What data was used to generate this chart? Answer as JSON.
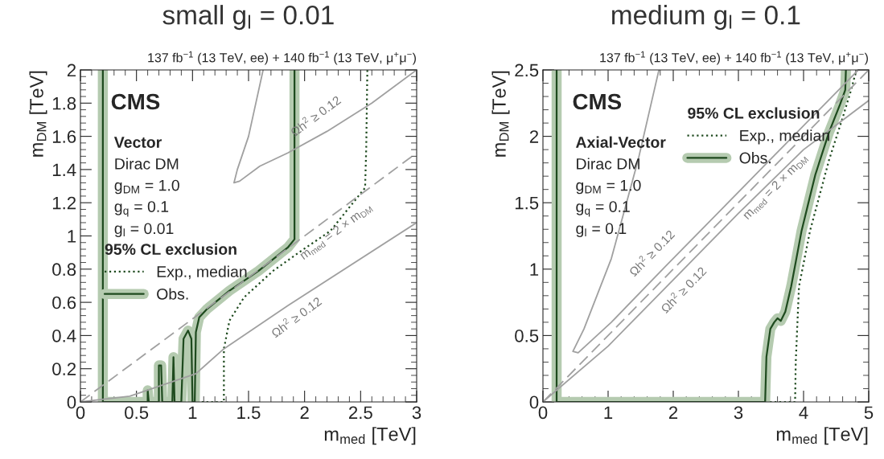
{
  "chart_data": [
    {
      "type": "line",
      "title": "small g$_{l}$ = 0.01",
      "subtitle": "137 fb$^{−1}$ (13 TeV, ee) + 140 fb$^{−1}$ (13 TeV, μ$^{+}$μ$^{−}$)",
      "xlabel": "m$_{med}$ [TeV]",
      "ylabel": "m$_{DM}$ [TeV]",
      "xlim": [
        0,
        3
      ],
      "ylim": [
        0,
        2
      ],
      "xticks": [
        0,
        0.5,
        1,
        1.5,
        2,
        2.5,
        3
      ],
      "yticks": [
        0,
        0.2,
        0.4,
        0.6,
        0.8,
        1,
        1.2,
        1.4,
        1.6,
        1.8,
        2
      ],
      "legend": "left",
      "legend_title": "95% CL exclusion",
      "annotations": [
        "CMS",
        "Vector",
        "Dirac DM",
        "g$_{DM}$ = 1.0",
        "g$_{q}$ = 0.1",
        "g$_{l}$ = 0.01",
        {
          "text": "Ωh$^{2}$ ≥ 0.12",
          "x": 2.2,
          "y": 1.63
        },
        {
          "text": "Ωh$^{2}$ ≥ 0.12",
          "x": 1.85,
          "y": 0.58
        },
        {
          "text": "m$_{med}$ = 2 × m$_{DM}$",
          "x": 2.2,
          "y": 1.1
        }
      ],
      "series": [
        {
          "name": "Exp., median",
          "color": "#1e4a1e",
          "line_style": "dotted",
          "x": [
            1.04,
            1.28,
            1.28,
            1.33,
            1.46,
            1.72,
            1.97,
            2.23,
            2.54,
            2.55,
            2.56
          ],
          "values": [
            0,
            0,
            0.32,
            0.49,
            0.63,
            0.79,
            0.91,
            1.03,
            1.29,
            1.53,
            2
          ]
        },
        {
          "name": "Obs.",
          "color": "#1e4a1e",
          "line_style": "solid",
          "x": [
            0.2,
            0.2,
            0.6,
            0.6,
            0.61,
            0.7,
            0.7,
            0.72,
            0.73,
            0.82,
            0.83,
            0.84,
            0.9,
            0.92,
            0.96,
            0.99,
            1.0,
            1.02,
            1.03,
            1.06,
            1.13,
            1.33,
            1.59,
            1.85,
            1.91,
            1.91
          ],
          "values": [
            2,
            0,
            0,
            0.07,
            0,
            0,
            0.22,
            0.22,
            0,
            0,
            0.27,
            0,
            0,
            0.38,
            0.43,
            0.38,
            0,
            0,
            0.42,
            0.51,
            0.56,
            0.67,
            0.79,
            0.93,
            0.98,
            2
          ]
        },
        {
          "color": "#a0a0a0",
          "line_style": "dashed",
          "x": [
            0,
            3
          ],
          "values": [
            0,
            1.5
          ]
        },
        {
          "color": "#a0a0a0",
          "line_style": "solid",
          "x": [
            0,
            0.44,
            1.03,
            1.28,
            1.85,
            3
          ],
          "values": [
            0,
            0.035,
            0.17,
            0.32,
            0.58,
            1.08
          ]
        },
        {
          "color": "#a0a0a0",
          "line_style": "solid",
          "x": [
            1.63,
            1.5,
            1.4,
            1.37,
            1.42,
            1.6,
            1.85,
            2.2,
            2.6,
            3
          ],
          "values": [
            2,
            1.6,
            1.4,
            1.32,
            1.33,
            1.42,
            1.5,
            1.63,
            1.8,
            2
          ]
        }
      ]
    },
    {
      "type": "line",
      "title": "medium g$_{l}$ = 0.1",
      "subtitle": "137 fb$^{−1}$ (13 TeV, ee) + 140 fb$^{−1}$ (13 TeV, μ$^{+}$μ$^{−}$)",
      "xlabel": "m$_{med}$ [TeV]",
      "ylabel": "m$_{DM}$ [TeV]",
      "xlim": [
        0,
        5
      ],
      "ylim": [
        0,
        2.5
      ],
      "xticks": [
        0,
        1,
        2,
        3,
        4,
        5
      ],
      "yticks": [
        0,
        0.5,
        1,
        1.5,
        2,
        2.5
      ],
      "legend": "top",
      "legend_title": "95% CL exclusion",
      "annotations": [
        "CMS",
        "Axial-Vector",
        "Dirac DM",
        "g$_{DM}$ = 1.0",
        "g$_{q}$ = 0.1",
        "g$_{l}$ = 0.1",
        {
          "text": "Ωh$^{2}$ ≥ 0.12",
          "x": 1.88,
          "y": 1.02
        },
        {
          "text": "Ωh$^{2}$ ≥ 0.12",
          "x": 2,
          "y": 0.92
        },
        {
          "text": "m$_{med}$ = 2 × m$_{DM}$",
          "x": 3.4,
          "y": 1.7
        }
      ],
      "series": [
        {
          "name": "Exp., median",
          "color": "#1e4a1e",
          "line_style": "dotted",
          "x": [
            3.41,
            3.87,
            3.88,
            3.93,
            4.1,
            4.39,
            4.6,
            4.73,
            4.81
          ],
          "values": [
            0,
            0,
            0.3,
            0.87,
            1.29,
            1.82,
            2.14,
            2.35,
            2.5
          ]
        },
        {
          "name": "Obs.",
          "color": "#1e4a1e",
          "line_style": "solid",
          "x": [
            0.21,
            0.21,
            3.41,
            3.43,
            3.49,
            3.55,
            3.6,
            3.65,
            3.72,
            3.81,
            3.97,
            4.18,
            4.39,
            4.56,
            4.64,
            4.65
          ],
          "values": [
            2.5,
            0,
            0,
            0.34,
            0.55,
            0.6,
            0.63,
            0.61,
            0.68,
            0.87,
            1.29,
            1.71,
            2.03,
            2.24,
            2.35,
            2.5
          ]
        },
        {
          "color": "#a0a0a0",
          "line_style": "dashed",
          "x": [
            0,
            5
          ],
          "values": [
            0,
            2.5
          ]
        },
        {
          "color": "#a0a0a0",
          "line_style": "solid",
          "x": [
            0,
            1,
            2,
            3,
            4,
            5
          ],
          "values": [
            0,
            0.42,
            0.92,
            1.42,
            1.9,
            2.27
          ]
        },
        {
          "color": "#a0a0a0",
          "line_style": "solid",
          "x": [
            1.78,
            1.46,
            1.05,
            0.63,
            0.46,
            0.54,
            1.05,
            1.88,
            2.72,
            3.56,
            4.3,
            4.84
          ],
          "values": [
            2.5,
            1.82,
            1.08,
            0.55,
            0.38,
            0.37,
            0.6,
            1.02,
            1.44,
            1.86,
            2.23,
            2.5
          ]
        }
      ]
    }
  ]
}
